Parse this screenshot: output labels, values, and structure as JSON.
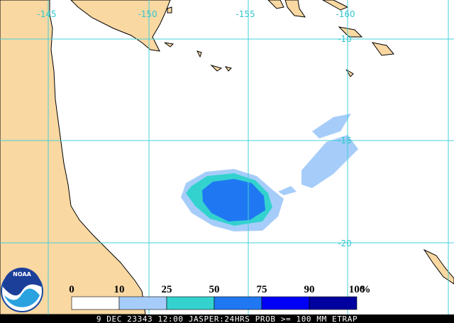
{
  "map": {
    "lon_labels": [
      "-145",
      "-150",
      "-155",
      "-160"
    ],
    "lat_labels": [
      "-10",
      "-15",
      "-20"
    ],
    "legend": {
      "bounds": [
        0,
        10,
        25,
        50,
        75,
        90,
        100
      ],
      "unit": "%",
      "colors": [
        "#ffffff",
        "#a6cdfa",
        "#33d2cf",
        "#1f78f2",
        "#0000f5",
        "#00009e"
      ]
    },
    "logo": "NOAA",
    "footer": "9 DEC 23343 12:00 JASPER:24HRS PROB >= 100 MM ETRAP"
  }
}
